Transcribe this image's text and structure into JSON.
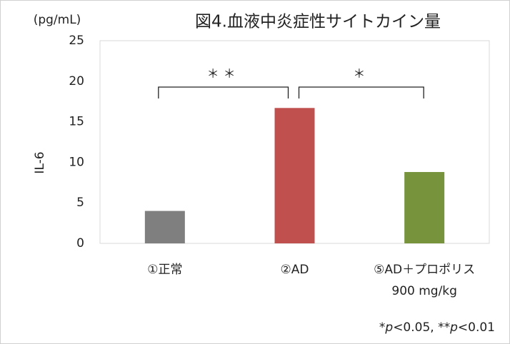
{
  "chart_data": {
    "type": "bar",
    "title": "図4.血液中炎症性サイトカイン量",
    "y_unit": "(pg/mL)",
    "y_label": "IL-6",
    "categories": [
      [
        "①正常"
      ],
      [
        "②AD"
      ],
      [
        "⑤AD＋プロポリス",
        "900 mg/kg"
      ]
    ],
    "values": [
      4.0,
      16.7,
      8.8
    ],
    "colors": [
      "#7f7f7f",
      "#c0504d",
      "#77933c"
    ],
    "ylim": [
      0,
      25
    ],
    "yticks": [
      0,
      5,
      10,
      15,
      20,
      25
    ],
    "grid": false,
    "annotations": [
      "＊＊",
      "＊"
    ],
    "footnote": [
      "*",
      "p",
      "<0.05, **",
      "p",
      "<0.01"
    ]
  }
}
